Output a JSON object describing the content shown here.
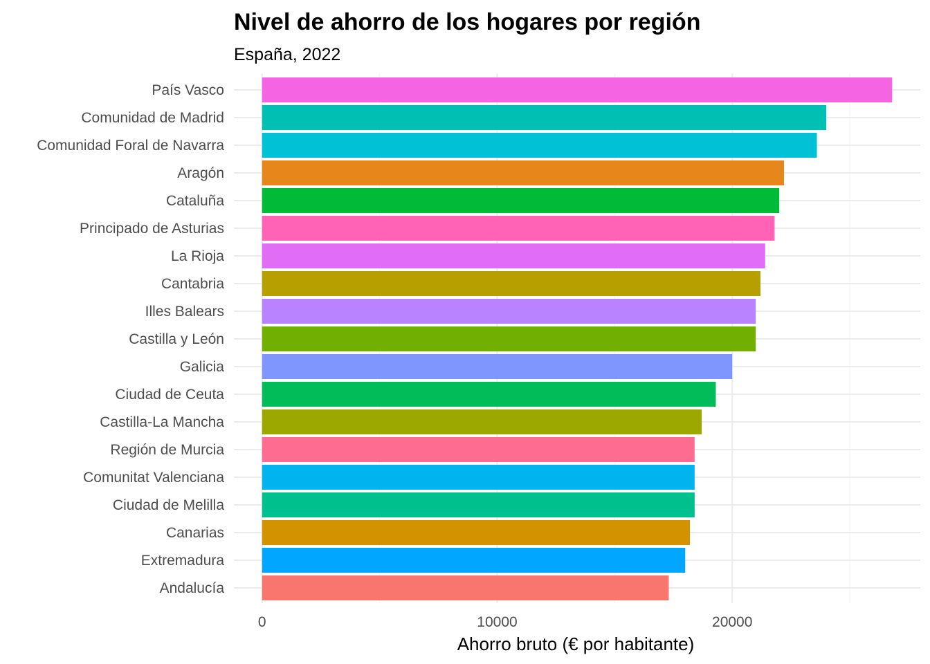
{
  "chart_data": {
    "type": "bar",
    "orientation": "horizontal",
    "title": "Nivel de ahorro de los hogares por región",
    "subtitle": "España, 2022",
    "xlabel": "Ahorro bruto (€ por habitante)",
    "ylabel": "",
    "xlim": [
      -1200,
      28000
    ],
    "xticks": [
      0,
      10000,
      20000
    ],
    "xtick_labels": [
      "0",
      "10000",
      "20000"
    ],
    "xminor_ticks": [
      5000,
      15000,
      25000
    ],
    "grid": true,
    "legend": "none",
    "categories": [
      "País Vasco",
      "Comunidad de Madrid",
      "Comunidad Foral de Navarra",
      "Aragón",
      "Cataluña",
      "Principado de Asturias",
      "La Rioja",
      "Cantabria",
      "Illes Balears",
      "Castilla y León",
      "Galicia",
      "Ciudad de Ceuta",
      "Castilla-La Mancha",
      "Región de Murcia",
      "Comunitat Valenciana",
      "Ciudad de Melilla",
      "Canarias",
      "Extremadura",
      "Andalucía"
    ],
    "values": [
      26800,
      24000,
      23600,
      22200,
      22000,
      21800,
      21400,
      21200,
      21000,
      21000,
      20000,
      19300,
      18700,
      18400,
      18400,
      18400,
      18200,
      18000,
      17300
    ],
    "colors": [
      "#F564E3",
      "#00BFB3",
      "#00C1D5",
      "#E7861B",
      "#00BA38",
      "#FF63B6",
      "#E16DF7",
      "#B79F00",
      "#B983FF",
      "#72B000",
      "#7F96FF",
      "#00BC59",
      "#9CA700",
      "#FF6C91",
      "#00B4EF",
      "#00C08D",
      "#D39200",
      "#00A6FF",
      "#F8766D"
    ]
  }
}
